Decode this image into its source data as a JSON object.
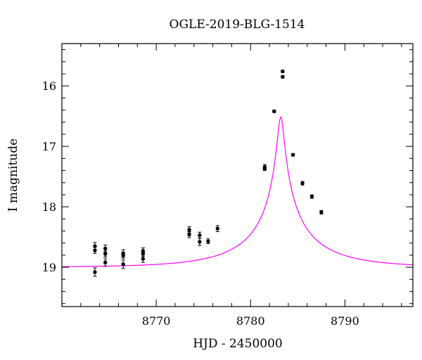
{
  "chart_data": {
    "type": "scatter",
    "title": "OGLE-2019-BLG-1514",
    "xlabel": "HJD - 2450000",
    "ylabel": "I magnitude",
    "xlim": [
      8760.0,
      8797.2
    ],
    "ylim": [
      19.65,
      15.3
    ],
    "y_inverted": true,
    "x_ticks": [
      8770,
      8780,
      8790
    ],
    "y_ticks": [
      16,
      17,
      18,
      19
    ],
    "x_minor_step": 2,
    "y_minor_step": 0.2,
    "grid": false,
    "colors": {
      "model": "#ff00ff",
      "points": "#000000"
    },
    "model_curve": {
      "name": "",
      "t0": 8783.2,
      "tE": 8.5,
      "u0": 0.04,
      "I_base": 19.0,
      "I_blend": 19.5
    },
    "series": [
      {
        "name": "",
        "points": [
          {
            "x": 8763.5,
            "y": 18.65,
            "err": 0.06
          },
          {
            "x": 8763.5,
            "y": 18.72,
            "err": 0.05
          },
          {
            "x": 8763.5,
            "y": 19.08,
            "err": 0.07
          },
          {
            "x": 8764.6,
            "y": 18.69,
            "err": 0.06
          },
          {
            "x": 8764.6,
            "y": 18.78,
            "err": 0.05
          },
          {
            "x": 8764.6,
            "y": 18.92,
            "err": 0.06
          },
          {
            "x": 8766.5,
            "y": 18.77,
            "err": 0.06
          },
          {
            "x": 8766.5,
            "y": 18.8,
            "err": 0.05
          },
          {
            "x": 8766.5,
            "y": 18.95,
            "err": 0.07
          },
          {
            "x": 8768.6,
            "y": 18.73,
            "err": 0.05
          },
          {
            "x": 8768.6,
            "y": 18.77,
            "err": 0.05
          },
          {
            "x": 8768.6,
            "y": 18.86,
            "err": 0.06
          },
          {
            "x": 8773.5,
            "y": 18.38,
            "err": 0.05
          },
          {
            "x": 8773.5,
            "y": 18.46,
            "err": 0.05
          },
          {
            "x": 8774.6,
            "y": 18.47,
            "err": 0.05
          },
          {
            "x": 8774.6,
            "y": 18.58,
            "err": 0.06
          },
          {
            "x": 8775.5,
            "y": 18.57,
            "err": 0.04
          },
          {
            "x": 8776.5,
            "y": 18.36,
            "err": 0.05
          },
          {
            "x": 8781.5,
            "y": 17.34,
            "err": 0.04
          },
          {
            "x": 8781.5,
            "y": 17.37,
            "err": 0.03
          },
          {
            "x": 8782.5,
            "y": 16.42,
            "err": 0.02
          },
          {
            "x": 8783.4,
            "y": 15.76,
            "err": 0.02
          },
          {
            "x": 8783.4,
            "y": 15.85,
            "err": 0.02
          },
          {
            "x": 8784.5,
            "y": 17.14,
            "err": 0.02
          },
          {
            "x": 8785.5,
            "y": 17.61,
            "err": 0.03
          },
          {
            "x": 8786.5,
            "y": 17.83,
            "err": 0.03
          },
          {
            "x": 8787.5,
            "y": 18.09,
            "err": 0.03
          }
        ]
      }
    ]
  }
}
